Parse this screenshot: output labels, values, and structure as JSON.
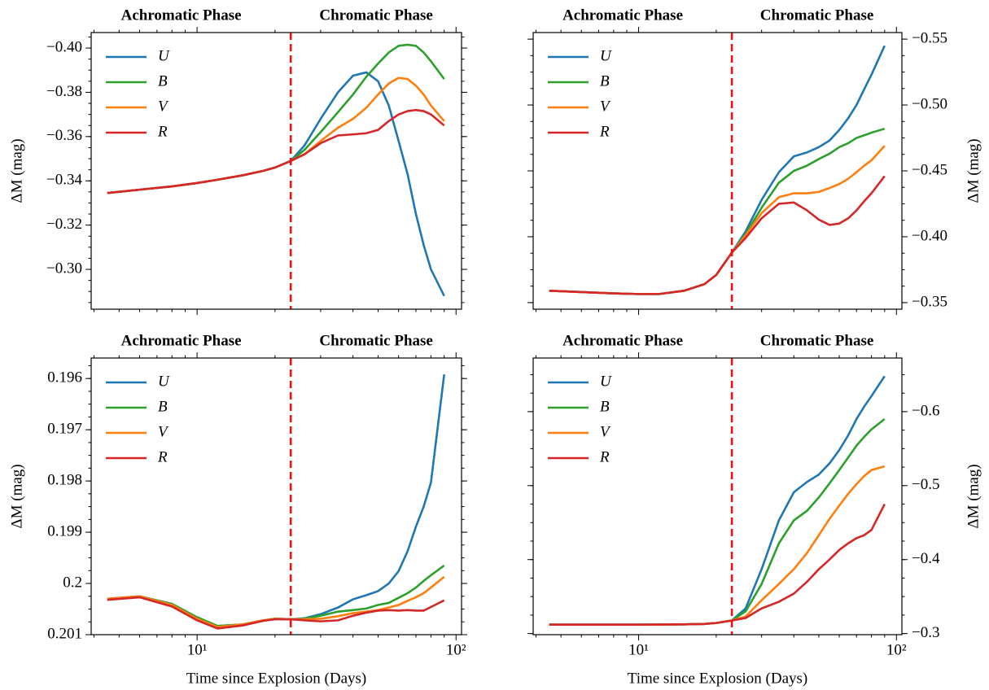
{
  "chart_data": [
    {
      "type": "line",
      "ylabel": "ΔM (mag)",
      "yaxis_side": "left",
      "xscale": "log",
      "xlim": [
        3.9,
        105
      ],
      "xticks": [
        10,
        100
      ],
      "xtick_labels": false,
      "ylim": [
        -0.282,
        -0.407
      ],
      "yticks": [
        {
          "value": -0.4,
          "label": "−0.40"
        },
        {
          "value": -0.38,
          "label": "−0.38"
        },
        {
          "value": -0.36,
          "label": "−0.36"
        },
        {
          "value": -0.34,
          "label": "−0.34"
        },
        {
          "value": -0.32,
          "label": "−0.32"
        },
        {
          "value": -0.3,
          "label": "−0.30"
        }
      ],
      "vline": 23,
      "vline_color": "#ee1111",
      "annotations": [
        "Achromatic Phase",
        "Chromatic Phase"
      ],
      "legend": "upper left",
      "x": [
        4.5,
        6,
        8,
        10,
        12,
        15,
        18,
        20,
        23,
        26,
        30,
        35,
        40,
        45,
        50,
        55,
        60,
        65,
        70,
        75,
        80,
        90
      ],
      "series": [
        {
          "name": "U",
          "color": "#1f77b4",
          "values": [
            -0.3345,
            -0.336,
            -0.3375,
            -0.339,
            -0.3405,
            -0.3425,
            -0.3445,
            -0.346,
            -0.349,
            -0.356,
            -0.368,
            -0.38,
            -0.3875,
            -0.389,
            -0.385,
            -0.374,
            -0.358,
            -0.343,
            -0.325,
            -0.311,
            -0.3,
            -0.288
          ]
        },
        {
          "name": "B",
          "color": "#2ca02c",
          "values": [
            -0.3345,
            -0.336,
            -0.3375,
            -0.339,
            -0.3405,
            -0.3425,
            -0.3445,
            -0.346,
            -0.349,
            -0.354,
            -0.362,
            -0.371,
            -0.379,
            -0.387,
            -0.393,
            -0.398,
            -0.401,
            -0.4015,
            -0.401,
            -0.398,
            -0.394,
            -0.386
          ]
        },
        {
          "name": "V",
          "color": "#ff7f0e",
          "values": [
            -0.3345,
            -0.336,
            -0.3375,
            -0.339,
            -0.3405,
            -0.3425,
            -0.3445,
            -0.346,
            -0.349,
            -0.352,
            -0.358,
            -0.364,
            -0.368,
            -0.373,
            -0.379,
            -0.384,
            -0.3865,
            -0.386,
            -0.383,
            -0.379,
            -0.374,
            -0.367
          ]
        },
        {
          "name": "R",
          "color": "#d62728",
          "values": [
            -0.3345,
            -0.336,
            -0.3375,
            -0.339,
            -0.3405,
            -0.3425,
            -0.3445,
            -0.346,
            -0.349,
            -0.352,
            -0.357,
            -0.3605,
            -0.361,
            -0.3615,
            -0.363,
            -0.367,
            -0.37,
            -0.3715,
            -0.372,
            -0.3715,
            -0.37,
            -0.365
          ]
        }
      ]
    },
    {
      "type": "line",
      "ylabel": "ΔM (mag)",
      "yaxis_side": "right",
      "xscale": "log",
      "xlim": [
        3.9,
        105
      ],
      "xticks": [
        10,
        100
      ],
      "xtick_labels": false,
      "ylim": [
        -0.345,
        -0.555
      ],
      "yticks": [
        {
          "value": -0.55,
          "label": "−0.55"
        },
        {
          "value": -0.5,
          "label": "−0.50"
        },
        {
          "value": -0.45,
          "label": "−0.45"
        },
        {
          "value": -0.4,
          "label": "−0.40"
        },
        {
          "value": -0.35,
          "label": "−0.35"
        }
      ],
      "vline": 23,
      "vline_color": "#ee1111",
      "annotations": [
        "Achromatic Phase",
        "Chromatic Phase"
      ],
      "legend": "upper left",
      "x": [
        4.5,
        6,
        8,
        10,
        12,
        15,
        18,
        20,
        23,
        26,
        30,
        35,
        40,
        45,
        50,
        55,
        60,
        65,
        70,
        75,
        80,
        90
      ],
      "series": [
        {
          "name": "U",
          "color": "#1f77b4",
          "values": [
            -0.359,
            -0.358,
            -0.357,
            -0.3565,
            -0.3565,
            -0.359,
            -0.364,
            -0.371,
            -0.388,
            -0.404,
            -0.428,
            -0.449,
            -0.461,
            -0.464,
            -0.468,
            -0.473,
            -0.481,
            -0.49,
            -0.5,
            -0.512,
            -0.523,
            -0.545
          ]
        },
        {
          "name": "B",
          "color": "#2ca02c",
          "values": [
            -0.359,
            -0.358,
            -0.357,
            -0.3565,
            -0.3565,
            -0.359,
            -0.364,
            -0.371,
            -0.388,
            -0.402,
            -0.422,
            -0.441,
            -0.45,
            -0.454,
            -0.459,
            -0.463,
            -0.468,
            -0.471,
            -0.475,
            -0.477,
            -0.479,
            -0.482
          ]
        },
        {
          "name": "V",
          "color": "#ff7f0e",
          "values": [
            -0.359,
            -0.358,
            -0.357,
            -0.3565,
            -0.3565,
            -0.359,
            -0.364,
            -0.371,
            -0.388,
            -0.401,
            -0.418,
            -0.43,
            -0.433,
            -0.433,
            -0.434,
            -0.437,
            -0.44,
            -0.444,
            -0.449,
            -0.454,
            -0.458,
            -0.469
          ]
        },
        {
          "name": "R",
          "color": "#d62728",
          "values": [
            -0.359,
            -0.358,
            -0.357,
            -0.3565,
            -0.3565,
            -0.359,
            -0.364,
            -0.371,
            -0.388,
            -0.399,
            -0.414,
            -0.425,
            -0.426,
            -0.42,
            -0.413,
            -0.409,
            -0.41,
            -0.414,
            -0.42,
            -0.427,
            -0.433,
            -0.446
          ]
        }
      ]
    },
    {
      "type": "line",
      "ylabel": "ΔM (mag)",
      "xlabel": "Time since Explosion (Days)",
      "yaxis_side": "left",
      "xscale": "log",
      "xlim": [
        3.9,
        105
      ],
      "xticks": [
        {
          "value": 10,
          "label": "10¹"
        },
        {
          "value": 100,
          "label": "10²"
        }
      ],
      "xtick_labels": true,
      "ylim": [
        0.201,
        0.1956
      ],
      "yticks": [
        0.196,
        0.197,
        0.198,
        0.199,
        0.2,
        0.201
      ],
      "vline": 23,
      "vline_color": "#ee1111",
      "annotations": [
        "Achromatic Phase",
        "Chromatic Phase"
      ],
      "legend": "upper left",
      "x": [
        4.5,
        6,
        8,
        10,
        12,
        15,
        18,
        20,
        23,
        26,
        30,
        35,
        40,
        45,
        50,
        55,
        60,
        65,
        70,
        75,
        80,
        90
      ],
      "series": [
        {
          "name": "U",
          "color": "#1f77b4",
          "values": [
            0.2003,
            0.20025,
            0.2004,
            0.20066,
            0.20083,
            0.2008,
            0.20072,
            0.20069,
            0.2007,
            0.20068,
            0.2006,
            0.20047,
            0.20031,
            0.20023,
            0.20015,
            0.2,
            0.19976,
            0.19937,
            0.19889,
            0.1985,
            0.19803,
            0.19592
          ]
        },
        {
          "name": "B",
          "color": "#2ca02c",
          "values": [
            0.2003,
            0.20025,
            0.2004,
            0.20066,
            0.20083,
            0.2008,
            0.20072,
            0.20069,
            0.2007,
            0.20069,
            0.20063,
            0.20055,
            0.20052,
            0.20049,
            0.20042,
            0.20038,
            0.20028,
            0.20019,
            0.20008,
            0.19995,
            0.19984,
            0.19965
          ]
        },
        {
          "name": "V",
          "color": "#ff7f0e",
          "values": [
            0.2003,
            0.20025,
            0.20042,
            0.20069,
            0.20085,
            0.2008,
            0.20072,
            0.20069,
            0.2007,
            0.2007,
            0.20069,
            0.20064,
            0.20058,
            0.20055,
            0.20052,
            0.20047,
            0.20042,
            0.20034,
            0.20027,
            0.20019,
            0.20008,
            0.19987
          ]
        },
        {
          "name": "R",
          "color": "#d62728",
          "values": [
            0.20032,
            0.20027,
            0.20045,
            0.20072,
            0.20088,
            0.20082,
            0.20073,
            0.2007,
            0.2007,
            0.20072,
            0.20074,
            0.20072,
            0.20063,
            0.20057,
            0.20053,
            0.20052,
            0.20053,
            0.20052,
            0.20053,
            0.20053,
            0.20046,
            0.20033
          ]
        }
      ]
    },
    {
      "type": "line",
      "ylabel": "ΔM (mag)",
      "xlabel": "Time since Explosion (Days)",
      "yaxis_side": "right",
      "xscale": "log",
      "xlim": [
        3.9,
        105
      ],
      "xticks": [
        {
          "value": 10,
          "label": "10¹"
        },
        {
          "value": 100,
          "label": "10²"
        }
      ],
      "xtick_labels": true,
      "ylim": [
        -0.2985,
        -0.6725
      ],
      "yticks": [
        {
          "value": -0.6,
          "label": "−0.6"
        },
        {
          "value": -0.5,
          "label": "−0.5"
        },
        {
          "value": -0.4,
          "label": "−0.4"
        },
        {
          "value": -0.3,
          "label": "−0.3"
        }
      ],
      "vline": 23,
      "vline_color": "#ee1111",
      "annotations": [
        "Achromatic Phase",
        "Chromatic Phase"
      ],
      "legend": "upper left",
      "x": [
        4.5,
        6,
        8,
        10,
        12,
        15,
        18,
        20,
        23,
        26,
        30,
        35,
        40,
        45,
        50,
        55,
        60,
        65,
        70,
        75,
        80,
        90
      ],
      "series": [
        {
          "name": "U",
          "color": "#1f77b4",
          "values": [
            -0.312,
            -0.312,
            -0.312,
            -0.312,
            -0.3122,
            -0.3125,
            -0.313,
            -0.3143,
            -0.3176,
            -0.334,
            -0.387,
            -0.453,
            -0.491,
            -0.505,
            -0.515,
            -0.53,
            -0.548,
            -0.568,
            -0.59,
            -0.607,
            -0.621,
            -0.648
          ]
        },
        {
          "name": "B",
          "color": "#2ca02c",
          "values": [
            -0.312,
            -0.312,
            -0.312,
            -0.312,
            -0.3122,
            -0.3125,
            -0.313,
            -0.3143,
            -0.3176,
            -0.33,
            -0.367,
            -0.422,
            -0.453,
            -0.466,
            -0.484,
            -0.503,
            -0.521,
            -0.538,
            -0.554,
            -0.566,
            -0.576,
            -0.59
          ]
        },
        {
          "name": "V",
          "color": "#ff7f0e",
          "values": [
            -0.312,
            -0.312,
            -0.312,
            -0.312,
            -0.3122,
            -0.3125,
            -0.313,
            -0.3143,
            -0.3176,
            -0.323,
            -0.345,
            -0.367,
            -0.387,
            -0.409,
            -0.433,
            -0.455,
            -0.473,
            -0.489,
            -0.502,
            -0.513,
            -0.521,
            -0.526
          ]
        },
        {
          "name": "R",
          "color": "#d62728",
          "values": [
            -0.312,
            -0.312,
            -0.312,
            -0.312,
            -0.3122,
            -0.3125,
            -0.313,
            -0.3143,
            -0.3176,
            -0.321,
            -0.334,
            -0.343,
            -0.354,
            -0.37,
            -0.387,
            -0.4,
            -0.413,
            -0.422,
            -0.429,
            -0.433,
            -0.44,
            -0.475
          ]
        }
      ]
    }
  ]
}
